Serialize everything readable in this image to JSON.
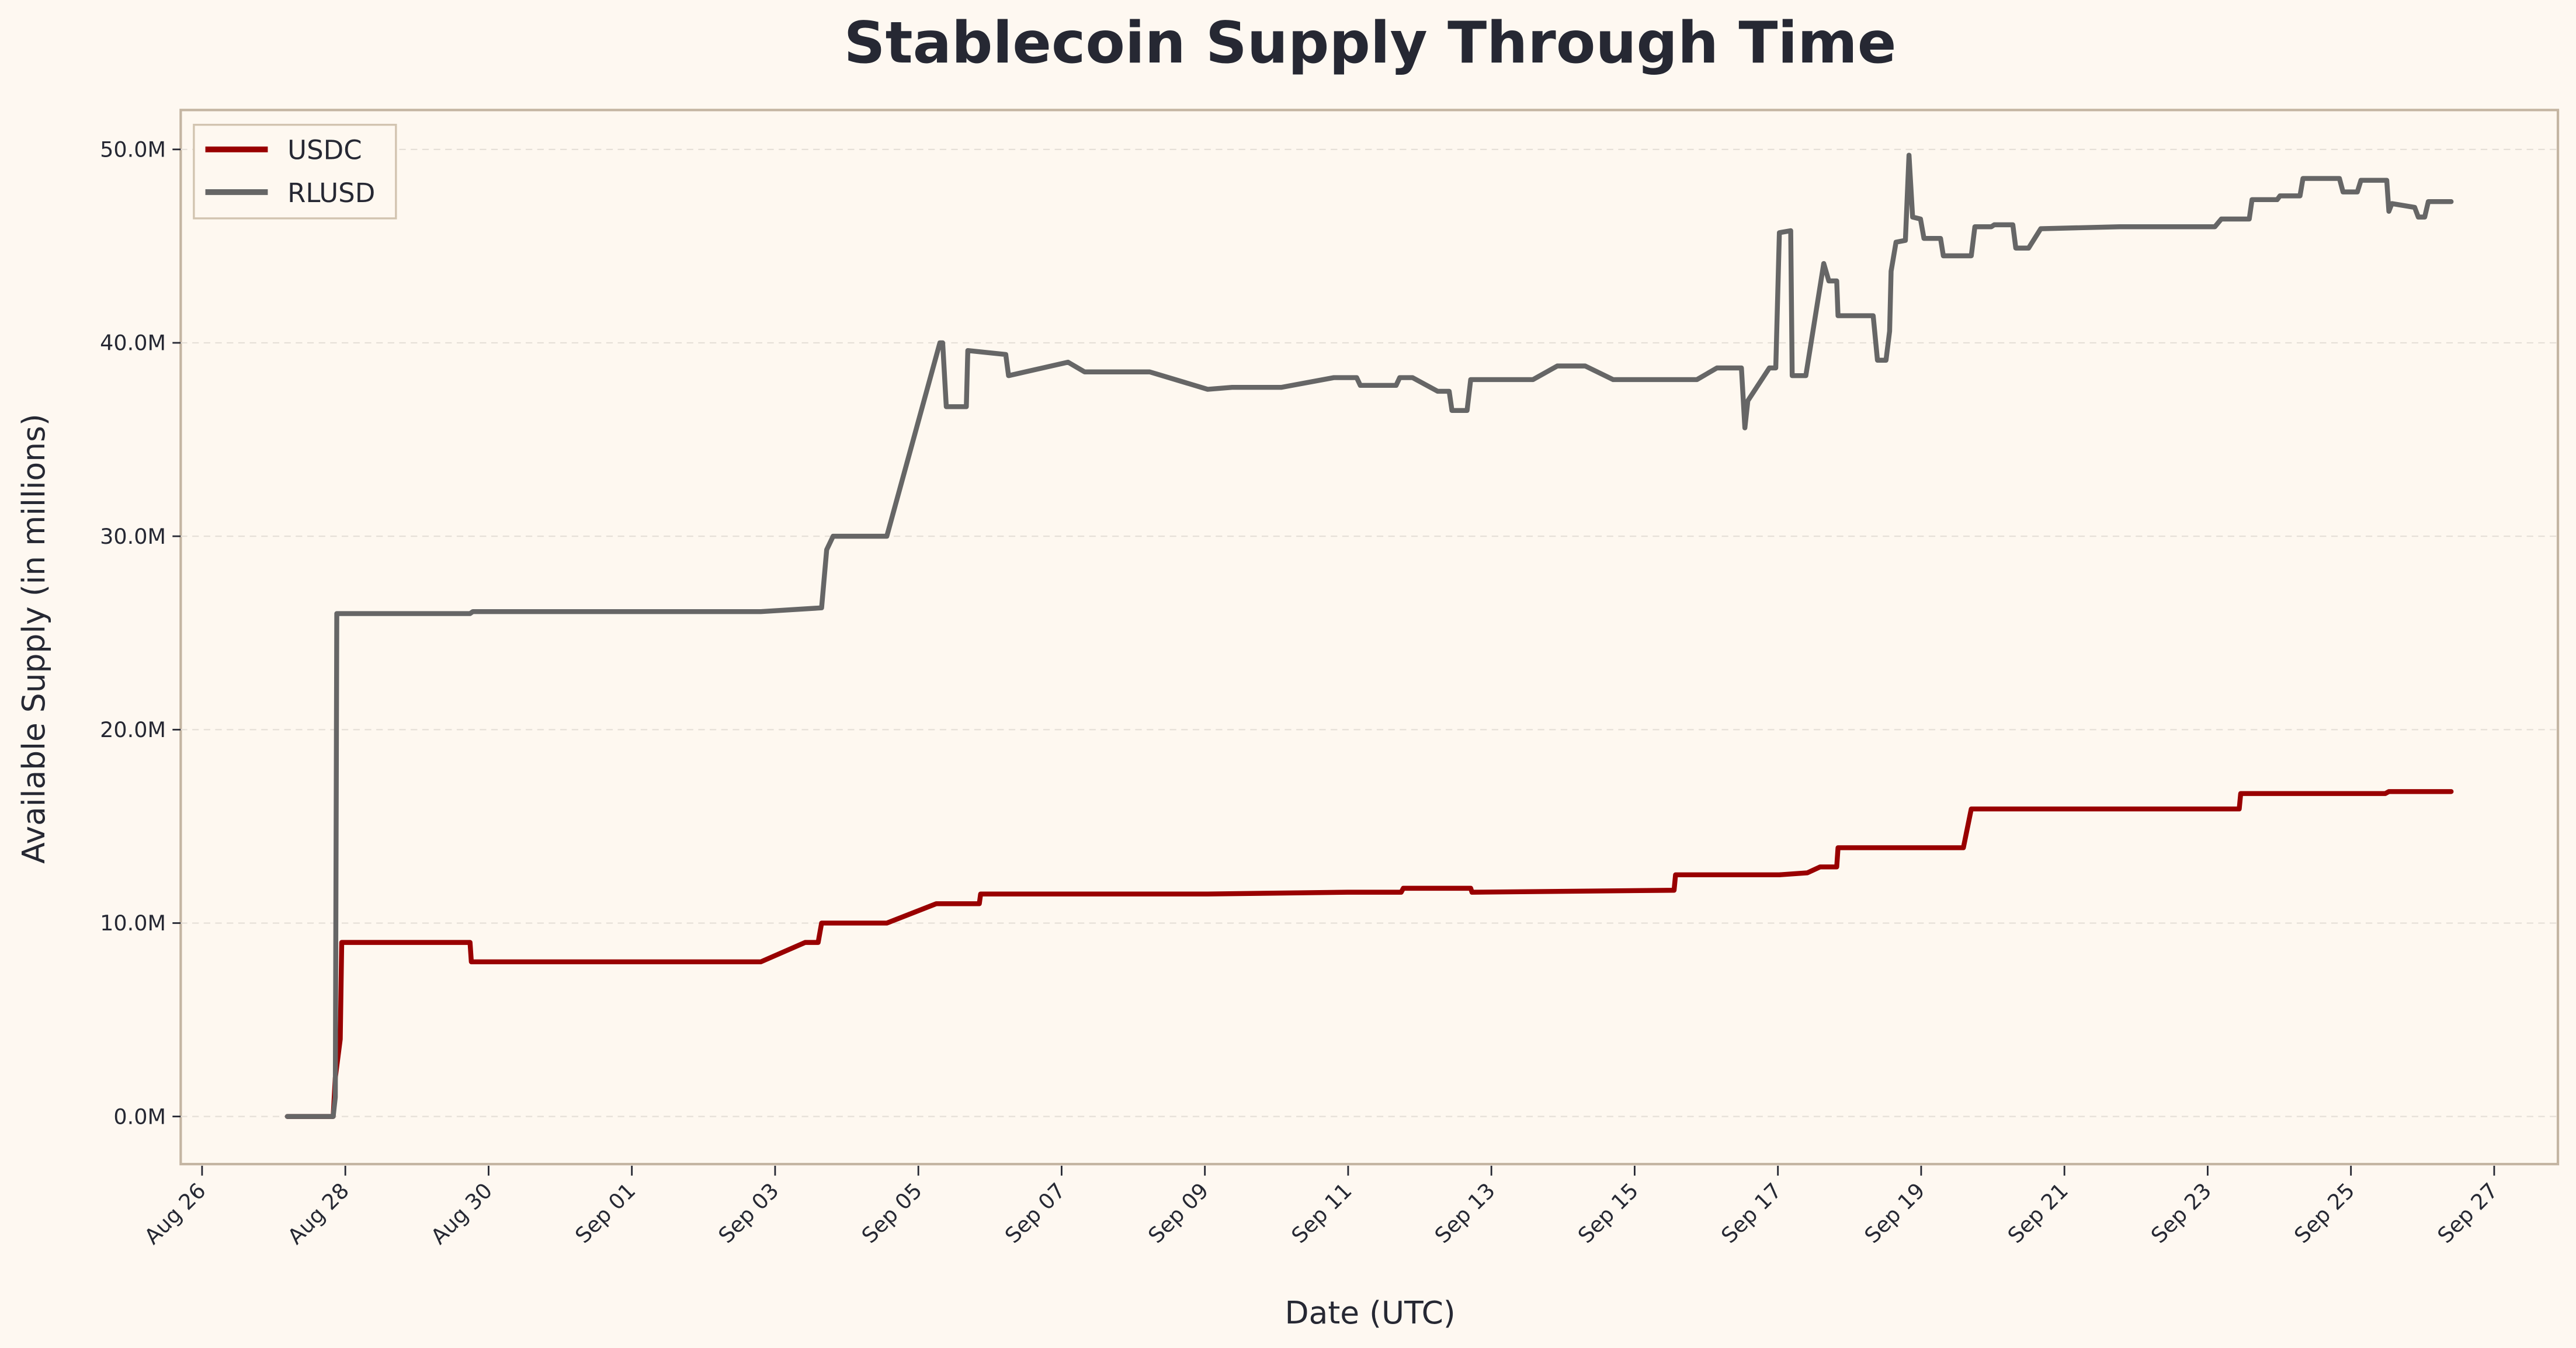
{
  "chart_data": {
    "type": "line",
    "title": "Stablecoin Supply Through Time",
    "xlabel": "Date (UTC)",
    "ylabel": "Available Supply (in millions)",
    "x_unit": "days since Aug 26 00:00 UTC",
    "xlim": [
      -0.3,
      33.0
    ],
    "ylim": [
      -2.4,
      52.1
    ],
    "grid": true,
    "legend_position": "top-left",
    "x_ticks": [
      {
        "day": 0,
        "label": "Aug 26"
      },
      {
        "day": 2,
        "label": "Aug 28"
      },
      {
        "day": 4,
        "label": "Aug 30"
      },
      {
        "day": 6,
        "label": "Sep 01"
      },
      {
        "day": 8,
        "label": "Sep 03"
      },
      {
        "day": 10,
        "label": "Sep 05"
      },
      {
        "day": 12,
        "label": "Sep 07"
      },
      {
        "day": 14,
        "label": "Sep 09"
      },
      {
        "day": 16,
        "label": "Sep 11"
      },
      {
        "day": 18,
        "label": "Sep 13"
      },
      {
        "day": 20,
        "label": "Sep 15"
      },
      {
        "day": 22,
        "label": "Sep 17"
      },
      {
        "day": 24,
        "label": "Sep 19"
      },
      {
        "day": 26,
        "label": "Sep 21"
      },
      {
        "day": 28,
        "label": "Sep 23"
      },
      {
        "day": 30,
        "label": "Sep 25"
      },
      {
        "day": 32,
        "label": "Sep 27"
      }
    ],
    "y_ticks": [
      {
        "value": 0,
        "label": "0.0M"
      },
      {
        "value": 10,
        "label": "10.0M"
      },
      {
        "value": 20,
        "label": "20.0M"
      },
      {
        "value": 30,
        "label": "30.0M"
      },
      {
        "value": 40,
        "label": "40.0M"
      },
      {
        "value": 50,
        "label": "50.0M"
      }
    ],
    "series": [
      {
        "name": "USDC",
        "color": "#990000",
        "x": [
          1.19,
          1.83,
          1.86,
          1.93,
          1.95,
          3.74,
          3.76,
          7.8,
          8.42,
          8.6,
          8.65,
          9.56,
          10.25,
          10.85,
          10.87,
          14.04,
          15.99,
          16.74,
          16.77,
          17.71,
          17.73,
          20.55,
          20.57,
          22.02,
          22.41,
          22.59,
          22.82,
          22.84,
          24.59,
          24.7,
          28.44,
          28.46,
          30.48,
          30.53,
          31.4
        ],
        "y": [
          0,
          0,
          2.0,
          4.0,
          9.0,
          9.0,
          8.0,
          8.0,
          9.0,
          9.0,
          10.0,
          10.0,
          11.0,
          11.0,
          11.5,
          11.5,
          11.6,
          11.6,
          11.8,
          11.8,
          11.6,
          11.7,
          12.5,
          12.5,
          12.6,
          12.9,
          12.9,
          13.9,
          13.9,
          15.9,
          15.9,
          16.7,
          16.7,
          16.8,
          16.8
        ]
      },
      {
        "name": "RLUSD",
        "color": "#666666",
        "x": [
          1.19,
          1.83,
          1.86,
          1.88,
          3.74,
          3.78,
          7.8,
          8.65,
          8.72,
          8.81,
          9.56,
          10.3,
          10.34,
          10.39,
          10.67,
          10.69,
          11.22,
          11.26,
          12.09,
          12.32,
          13.23,
          14.04,
          14.38,
          15.07,
          15.8,
          16.12,
          16.17,
          16.67,
          16.72,
          16.9,
          17.25,
          17.41,
          17.45,
          17.66,
          17.71,
          18.58,
          18.92,
          19.31,
          19.7,
          20.87,
          21.15,
          21.49,
          21.54,
          21.58,
          21.88,
          21.97,
          22.02,
          22.18,
          22.2,
          22.39,
          22.64,
          22.71,
          22.82,
          22.84,
          23.33,
          23.39,
          23.51,
          23.56,
          23.58,
          23.65,
          23.78,
          23.83,
          23.88,
          23.99,
          24.04,
          24.27,
          24.31,
          24.7,
          24.75,
          24.98,
          25.02,
          25.28,
          25.32,
          25.5,
          25.67,
          26.77,
          28.1,
          28.19,
          28.58,
          28.62,
          28.97,
          29.01,
          29.29,
          29.33,
          29.84,
          29.89,
          30.09,
          30.14,
          30.5,
          30.53,
          30.57,
          30.89,
          30.94,
          31.03,
          31.08,
          31.4
        ],
        "y": [
          0,
          0,
          1.0,
          26.0,
          26.0,
          26.1,
          26.1,
          26.3,
          29.3,
          30.0,
          30.0,
          40.0,
          40.0,
          36.7,
          36.7,
          39.6,
          39.4,
          38.3,
          39.0,
          38.5,
          38.5,
          37.6,
          37.7,
          37.7,
          38.2,
          38.2,
          37.8,
          37.8,
          38.2,
          38.2,
          37.5,
          37.5,
          36.5,
          36.5,
          38.1,
          38.1,
          38.8,
          38.8,
          38.1,
          38.1,
          38.7,
          38.7,
          35.6,
          37.0,
          38.7,
          38.7,
          45.7,
          45.8,
          38.3,
          38.3,
          44.1,
          43.2,
          43.2,
          41.4,
          41.4,
          39.1,
          39.1,
          40.6,
          43.7,
          45.2,
          45.3,
          49.7,
          46.5,
          46.4,
          45.4,
          45.4,
          44.5,
          44.5,
          46.0,
          46.0,
          46.1,
          46.1,
          44.9,
          44.9,
          45.9,
          46.0,
          46.0,
          46.4,
          46.4,
          47.4,
          47.4,
          47.6,
          47.6,
          48.5,
          48.5,
          47.8,
          47.8,
          48.4,
          48.4,
          46.8,
          47.2,
          47.0,
          46.5,
          46.5,
          47.3,
          47.3
        ]
      }
    ]
  }
}
